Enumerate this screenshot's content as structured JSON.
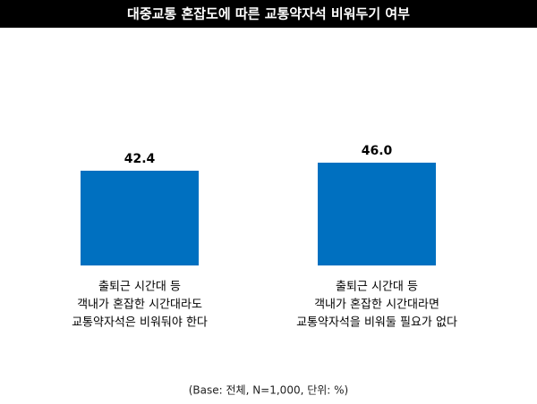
{
  "chart_data": {
    "type": "bar",
    "title": "대중교통 혼잡도에 따른 교통약자석 비워두기 여부",
    "categories": [
      [
        "출퇴근 시간대 등",
        "객내가 혼잡한 시간대라도",
        "교통약자석은 비워둬야 한다"
      ],
      [
        "출퇴근 시간대 등",
        "객내가 혼잡한 시간대라면",
        "교통약자석을 비워둘 필요가 없다"
      ]
    ],
    "values": [
      42.4,
      46.0
    ],
    "value_labels": [
      "42.4",
      "46.0"
    ],
    "color": "#0070c0",
    "note": "(Base: 전체, N=1,000, 단위: %)"
  }
}
